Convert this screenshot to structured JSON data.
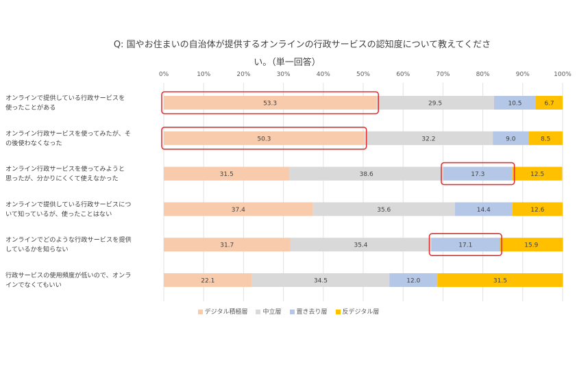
{
  "chart_data": {
    "type": "bar",
    "stacked": true,
    "orientation": "horizontal",
    "title_lines": [
      "Q: 国やお住まいの自治体が提供するオンラインの行政サービスの認知度について教えてくださ",
      "い。（単一回答）"
    ],
    "categories": [
      [
        "オンラインで提供している行政サービスを",
        "使ったことがある"
      ],
      [
        "オンライン行政サービスを使ってみたが、そ",
        "の後使わなくなった"
      ],
      [
        "オンライン行政サービスを使ってみようと",
        "思ったが、分かりにくくて使えなかった"
      ],
      [
        "オンラインで提供している行政サービスにつ",
        "いて知っているが、使ったことはない"
      ],
      [
        "オンラインでどのような行政サービスを提供",
        "しているかを知らない"
      ],
      [
        "行政サービスの使用頻度が低いので、オンラ",
        "インでなくてもいい"
      ]
    ],
    "series": [
      {
        "name": "デジタル積極層",
        "color": "#f8cbad",
        "values": [
          53.3,
          50.3,
          31.5,
          37.4,
          31.7,
          22.1
        ]
      },
      {
        "name": "中立層",
        "color": "#d9d9d9",
        "values": [
          29.5,
          32.2,
          38.6,
          35.6,
          35.4,
          34.5
        ]
      },
      {
        "name": "置き去り層",
        "color": "#b4c7e7",
        "values": [
          10.5,
          9.0,
          17.3,
          14.4,
          17.1,
          12.0
        ]
      },
      {
        "name": "反デジタル層",
        "color": "#ffc000",
        "values": [
          6.7,
          8.5,
          12.5,
          12.6,
          15.9,
          31.5
        ]
      }
    ],
    "x_ticks": [
      "0%",
      "10%",
      "20%",
      "30%",
      "40%",
      "50%",
      "60%",
      "70%",
      "80%",
      "90%",
      "100%"
    ],
    "xlim": [
      0,
      100
    ],
    "highlights": [
      {
        "category_index": 0,
        "series_index": 0
      },
      {
        "category_index": 1,
        "series_index": 0
      },
      {
        "category_index": 2,
        "series_index": 2
      },
      {
        "category_index": 4,
        "series_index": 2
      }
    ],
    "highlight_color": "#e03030",
    "legend_position": "bottom",
    "grid": true
  }
}
